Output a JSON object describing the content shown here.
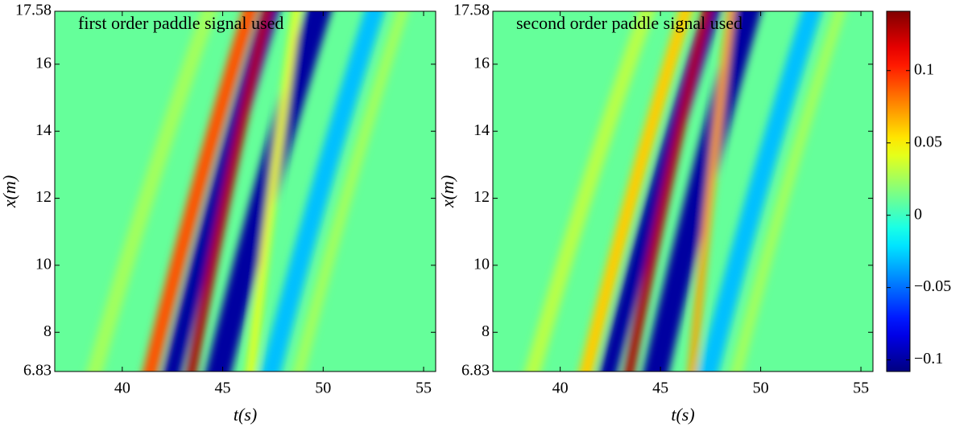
{
  "chart_data": [
    {
      "type": "heatmap",
      "title": "first order paddle signal used",
      "xlabel": "t(s)",
      "ylabel": "x(m)",
      "xlim": [
        36.64,
        55.6
      ],
      "ylim": [
        6.83,
        17.58
      ],
      "xticks": [
        40,
        45,
        50,
        55
      ],
      "yticks": [
        6.83,
        8,
        10,
        12,
        14,
        16,
        17.58
      ],
      "colormap": "jet",
      "base_value": 0.01,
      "stripes": {
        "t_bottom": [
          38.4,
          41.2,
          42.3,
          43.3,
          44.6,
          46.3,
          47.2,
          48.6
        ],
        "t_top": [
          44.6,
          46.6,
          47.6,
          47.4,
          50.0,
          48.8,
          52.8,
          54.2
        ],
        "width": [
          0.8,
          0.75,
          0.9,
          0.5,
          1.3,
          0.4,
          1.0,
          0.6
        ],
        "values": [
          0.025,
          0.09,
          -0.1,
          0.13,
          -0.1,
          0.045,
          -0.03,
          0.025
        ]
      }
    },
    {
      "type": "heatmap",
      "title": "second order paddle signal used",
      "xlabel": "t(s)",
      "ylabel": "x(m)",
      "xlim": [
        36.64,
        55.6
      ],
      "ylim": [
        6.83,
        17.58
      ],
      "xticks": [
        40,
        45,
        50,
        55
      ],
      "yticks": [
        6.83,
        8,
        10,
        12,
        14,
        16,
        17.58
      ],
      "colormap": "jet",
      "base_value": 0.01,
      "stripes": {
        "t_bottom": [
          38.4,
          41.1,
          42.2,
          43.3,
          44.6,
          46.5,
          47.2,
          48.6
        ],
        "t_top": [
          44.6,
          46.5,
          47.8,
          47.5,
          49.6,
          48.6,
          52.8,
          54.2
        ],
        "width": [
          0.8,
          0.7,
          0.9,
          0.5,
          1.3,
          0.4,
          1.0,
          0.6
        ],
        "values": [
          0.03,
          0.06,
          -0.1,
          0.13,
          -0.1,
          0.07,
          -0.03,
          0.025
        ]
      },
      "colorbar": {
        "clim": [
          -0.108,
          0.141
        ],
        "ticks": [
          {
            "value": -0.1,
            "label": "−0.1"
          },
          {
            "value": -0.05,
            "label": "−0.05"
          },
          0,
          0.05,
          0.1
        ]
      }
    }
  ]
}
